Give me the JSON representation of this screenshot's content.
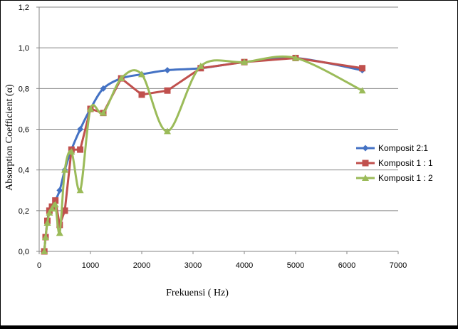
{
  "chart_data": {
    "type": "line",
    "xlabel": "Frekuensi ( Hz)",
    "ylabel": "Absorption Coefficient (α)",
    "xlim": [
      0,
      7000
    ],
    "ylim": [
      0,
      1.2
    ],
    "x_ticks": [
      "0",
      "1000",
      "2000",
      "3000",
      "4000",
      "5000",
      "6000",
      "7000"
    ],
    "y_ticks": [
      "0,0",
      "0,2",
      "0,4",
      "0,6",
      "0,8",
      "1,0",
      "1,2"
    ],
    "grid": "horizontal",
    "legend_position": "right",
    "series": [
      {
        "name": "Komposit 2:1",
        "color": "#4472c4",
        "marker": "diamond",
        "smooth": true,
        "points": [
          [
            100,
            0.0
          ],
          [
            125,
            0.07
          ],
          [
            160,
            0.15
          ],
          [
            200,
            0.2
          ],
          [
            250,
            0.22
          ],
          [
            315,
            0.25
          ],
          [
            400,
            0.3
          ],
          [
            500,
            0.4
          ],
          [
            630,
            0.5
          ],
          [
            800,
            0.6
          ],
          [
            1000,
            0.7
          ],
          [
            1250,
            0.8
          ],
          [
            1600,
            0.85
          ],
          [
            2000,
            0.87
          ],
          [
            2500,
            0.89
          ],
          [
            3150,
            0.9
          ],
          [
            4000,
            0.93
          ],
          [
            5000,
            0.95
          ],
          [
            6300,
            0.89
          ]
        ]
      },
      {
        "name": "Komposit 1 : 1",
        "color": "#c0504d",
        "marker": "square",
        "smooth": false,
        "points": [
          [
            100,
            0.0
          ],
          [
            125,
            0.07
          ],
          [
            160,
            0.15
          ],
          [
            200,
            0.2
          ],
          [
            250,
            0.22
          ],
          [
            315,
            0.25
          ],
          [
            400,
            0.13
          ],
          [
            500,
            0.2
          ],
          [
            630,
            0.5
          ],
          [
            800,
            0.5
          ],
          [
            1000,
            0.7
          ],
          [
            1250,
            0.68
          ],
          [
            1600,
            0.85
          ],
          [
            2000,
            0.77
          ],
          [
            2500,
            0.79
          ],
          [
            3150,
            0.9
          ],
          [
            4000,
            0.93
          ],
          [
            5000,
            0.95
          ],
          [
            6300,
            0.9
          ]
        ]
      },
      {
        "name": "Komposit 1 : 2",
        "color": "#9bbb59",
        "marker": "triangle",
        "smooth": true,
        "points": [
          [
            100,
            0.0
          ],
          [
            125,
            0.07
          ],
          [
            160,
            0.14
          ],
          [
            200,
            0.19
          ],
          [
            250,
            0.21
          ],
          [
            315,
            0.23
          ],
          [
            400,
            0.09
          ],
          [
            500,
            0.4
          ],
          [
            630,
            0.49
          ],
          [
            800,
            0.3
          ],
          [
            1000,
            0.7
          ],
          [
            1250,
            0.68
          ],
          [
            1600,
            0.85
          ],
          [
            2000,
            0.87
          ],
          [
            2500,
            0.59
          ],
          [
            3150,
            0.91
          ],
          [
            4000,
            0.93
          ],
          [
            5000,
            0.95
          ],
          [
            6300,
            0.79
          ]
        ]
      }
    ]
  }
}
